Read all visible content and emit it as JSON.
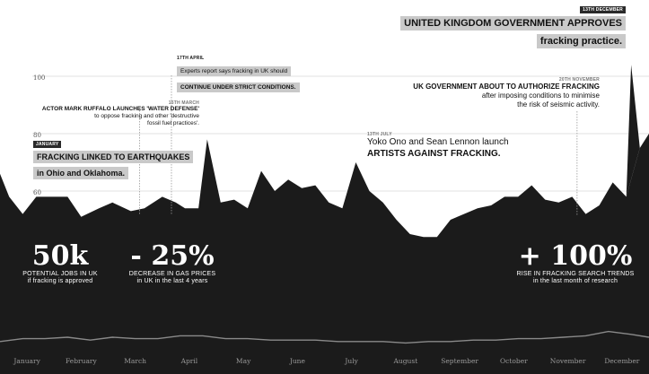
{
  "chart_data": {
    "type": "area",
    "xlabel": "",
    "ylabel": "",
    "ylim": [
      0,
      115
    ],
    "x_range": [
      0,
      12
    ],
    "y_ticks": [
      60,
      80,
      100
    ],
    "months": [
      "January",
      "February",
      "March",
      "April",
      "May",
      "June",
      "July",
      "August",
      "September",
      "October",
      "November",
      "December"
    ],
    "series": [
      {
        "x": [
          0,
          0.17,
          0.42,
          0.67,
          0.92,
          1.25,
          1.5,
          1.83,
          2.08,
          2.42,
          2.67,
          3.0,
          3.25,
          3.42,
          3.67,
          3.83,
          4.08,
          4.33,
          4.58,
          4.83,
          5.08,
          5.33,
          5.58,
          5.83,
          6.08,
          6.33,
          6.58,
          6.83,
          7.08,
          7.33,
          7.58,
          7.83,
          8.08,
          8.33,
          8.58,
          8.83,
          9.08,
          9.33,
          9.58,
          9.83,
          10.08,
          10.33,
          10.58,
          10.83,
          11.08,
          11.33,
          11.58,
          11.83,
          12.0
        ],
        "y": [
          66,
          58,
          52,
          58,
          58,
          58,
          51,
          54,
          56,
          53,
          54,
          58,
          56,
          54,
          54,
          78,
          56,
          57,
          54,
          67,
          60,
          64,
          61,
          62,
          56,
          54,
          70,
          60,
          56,
          50,
          45,
          44,
          44,
          50,
          52,
          54,
          55,
          58,
          58,
          62,
          57,
          56,
          58,
          52,
          55,
          63,
          58,
          75,
          80
        ]
      },
      {
        "x": [
          0,
          0.42,
          0.83,
          1.25,
          1.67,
          2.08,
          2.5,
          2.92,
          3.33,
          3.75,
          4.17,
          4.58,
          5.0,
          5.42,
          5.83,
          6.25,
          6.67,
          7.08,
          7.5,
          7.92,
          8.33,
          8.75,
          9.17,
          9.58,
          10.0,
          10.42,
          10.83,
          11.25,
          11.67,
          12.0
        ],
        "y": [
          12,
          14,
          14,
          15,
          13,
          15,
          14,
          14,
          16,
          16,
          14,
          14,
          13,
          13,
          13,
          12,
          12,
          12,
          11,
          12,
          12,
          13,
          13,
          14,
          14,
          15,
          16,
          19,
          17,
          15
        ]
      }
    ],
    "annotations": {
      "jan": {
        "date": "January",
        "lines": [
          "FRACKING LINKED TO EARTHQUAKES",
          "in Ohio and Oklahoma."
        ]
      },
      "mar": {
        "date": "15th March",
        "lines": [
          "ACTOR MARK RUFFALO LAUNCHES 'WATER DEFENSE'",
          "to oppose fracking and other 'destructive",
          "fossil fuel practices'."
        ]
      },
      "apr": {
        "date": "17th April",
        "lines": [
          "Experts report says fracking in UK should",
          "CONTINUE UNDER STRICT CONDITIONS."
        ]
      },
      "jul": {
        "date": "13th July",
        "lines": [
          "Yoko Ono and Sean Lennon launch",
          "ARTISTS AGAINST FRACKING."
        ]
      },
      "nov": {
        "date": "20th November",
        "lines": [
          "UK GOVERNMENT ABOUT TO AUTHORIZE FRACKING",
          "after imposing conditions to minimise",
          "the risk of seismic activity."
        ]
      },
      "dec": {
        "date": "13th December",
        "lines": [
          "UNITED KINGDOM GOVERNMENT APPROVES",
          "fracking practice."
        ]
      }
    },
    "stats": [
      {
        "value": "50k",
        "caption_1": "POTENTIAL JOBS IN UK",
        "caption_2": "if fracking is approved"
      },
      {
        "value": "- 25%",
        "caption_1": "DECREASE IN GAS PRICES",
        "caption_2": "in UK in the last 4 years"
      },
      {
        "value": "+ 100%",
        "caption_1": "RISE IN FRACKING SEARCH TRENDS",
        "caption_2": "in the last month of research"
      }
    ],
    "colors": {
      "area": "#1b1b1b",
      "grid": "#d9d9d9",
      "axis_label": "#555555",
      "inset_line": "#8a8a8a",
      "leader": "#999999",
      "tag_fill": "#c9c9c9",
      "date_box": "#2a2a2a"
    }
  }
}
